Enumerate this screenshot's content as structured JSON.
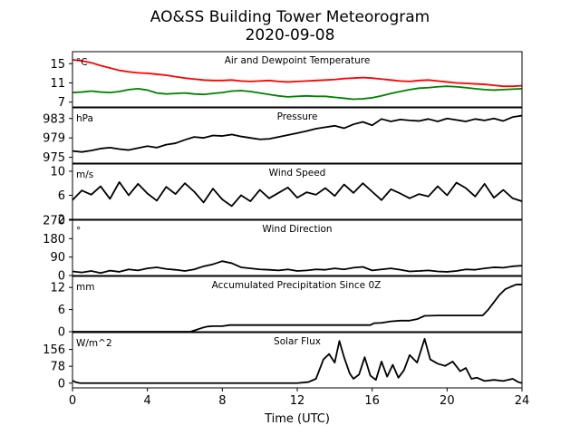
{
  "figure": {
    "title_line1": "AO&SS Building Tower Meteorogram",
    "title_line2": "2020-09-08",
    "xlabel": "Time (UTC)",
    "xlim": [
      0,
      24
    ],
    "xticks": [
      0,
      4,
      8,
      12,
      16,
      20,
      24
    ]
  },
  "chart_data": [
    {
      "type": "line",
      "title": "Air and Dewpoint Temperature",
      "unit": "°C",
      "ylim": [
        6,
        17.5
      ],
      "yticks": [
        7,
        11,
        15
      ],
      "series": [
        {
          "color": "#ff0000",
          "x": [
            0,
            0.5,
            1,
            1.5,
            2,
            2.5,
            3,
            3.5,
            4,
            4.5,
            5,
            5.5,
            6,
            6.5,
            7,
            7.5,
            8,
            8.5,
            9,
            9.5,
            10,
            10.5,
            11,
            11.5,
            12,
            12.5,
            13,
            13.5,
            14,
            14.5,
            15,
            15.5,
            16,
            16.5,
            17,
            17.5,
            18,
            18.5,
            19,
            19.5,
            20,
            20.5,
            21,
            21.5,
            22,
            22.5,
            23,
            23.5,
            24
          ],
          "y": [
            15.8,
            15.6,
            15.2,
            14.6,
            14.1,
            13.6,
            13.3,
            13.1,
            13.0,
            12.8,
            12.6,
            12.3,
            12.0,
            11.8,
            11.6,
            11.5,
            11.5,
            11.6,
            11.4,
            11.3,
            11.4,
            11.5,
            11.3,
            11.2,
            11.3,
            11.4,
            11.5,
            11.6,
            11.7,
            11.9,
            12.0,
            12.1,
            12.0,
            11.8,
            11.6,
            11.4,
            11.3,
            11.5,
            11.6,
            11.4,
            11.2,
            11.0,
            10.9,
            10.8,
            10.7,
            10.5,
            10.3,
            10.3,
            10.4
          ]
        },
        {
          "color": "#008000",
          "x": [
            0,
            0.5,
            1,
            1.5,
            2,
            2.5,
            3,
            3.5,
            4,
            4.5,
            5,
            5.5,
            6,
            6.5,
            7,
            7.5,
            8,
            8.5,
            9,
            9.5,
            10,
            10.5,
            11,
            11.5,
            12,
            12.5,
            13,
            13.5,
            14,
            14.5,
            15,
            15.5,
            16,
            16.5,
            17,
            17.5,
            18,
            18.5,
            19,
            19.5,
            20,
            20.5,
            21,
            21.5,
            22,
            22.5,
            23,
            23.5,
            24
          ],
          "y": [
            9.0,
            9.1,
            9.3,
            9.1,
            9.0,
            9.2,
            9.6,
            9.8,
            9.5,
            8.9,
            8.7,
            8.8,
            8.9,
            8.7,
            8.6,
            8.8,
            9.0,
            9.3,
            9.4,
            9.2,
            8.9,
            8.6,
            8.3,
            8.1,
            8.2,
            8.3,
            8.2,
            8.2,
            8.0,
            7.8,
            7.6,
            7.7,
            7.9,
            8.3,
            8.8,
            9.2,
            9.6,
            9.9,
            10.0,
            10.2,
            10.3,
            10.2,
            10.0,
            9.8,
            9.6,
            9.5,
            9.6,
            9.7,
            9.8
          ]
        }
      ]
    },
    {
      "type": "line",
      "title": "Pressure",
      "unit": "hPa",
      "ylim": [
        973.8,
        985.2
      ],
      "yticks": [
        975,
        979,
        983
      ],
      "series": [
        {
          "color": "#000000",
          "x": [
            0,
            0.5,
            1,
            1.5,
            2,
            2.5,
            3,
            3.5,
            4,
            4.5,
            5,
            5.5,
            6,
            6.5,
            7,
            7.5,
            8,
            8.5,
            9,
            9.5,
            10,
            10.5,
            11,
            11.5,
            12,
            12.5,
            13,
            13.5,
            14,
            14.5,
            15,
            15.5,
            16,
            16.5,
            17,
            17.5,
            18,
            18.5,
            19,
            19.5,
            20,
            20.5,
            21,
            21.5,
            22,
            22.5,
            23,
            23.5,
            24
          ],
          "y": [
            976.3,
            976.1,
            976.4,
            976.8,
            977.0,
            976.7,
            976.5,
            976.9,
            977.3,
            977.0,
            977.6,
            977.9,
            978.6,
            979.2,
            979.0,
            979.5,
            979.4,
            979.7,
            979.3,
            979.0,
            978.7,
            978.8,
            979.2,
            979.6,
            980.0,
            980.4,
            980.9,
            981.2,
            981.5,
            981.0,
            981.8,
            982.3,
            981.6,
            982.9,
            982.4,
            982.8,
            982.6,
            982.5,
            982.9,
            982.4,
            983.0,
            982.7,
            982.4,
            982.9,
            982.6,
            983.0,
            982.5,
            983.3,
            983.6
          ]
        }
      ]
    },
    {
      "type": "line",
      "title": "Wind Speed",
      "unit": "m/s",
      "ylim": [
        2,
        11.2
      ],
      "yticks": [
        2,
        6,
        10
      ],
      "series": [
        {
          "color": "#000000",
          "x": [
            0,
            0.5,
            1,
            1.5,
            2,
            2.5,
            3,
            3.5,
            4,
            4.5,
            5,
            5.5,
            6,
            6.5,
            7,
            7.5,
            8,
            8.5,
            9,
            9.5,
            10,
            10.5,
            11,
            11.5,
            12,
            12.5,
            13,
            13.5,
            14,
            14.5,
            15,
            15.5,
            16,
            16.5,
            17,
            17.5,
            18,
            18.5,
            19,
            19.5,
            20,
            20.5,
            21,
            21.5,
            22,
            22.5,
            23,
            23.5,
            24
          ],
          "y": [
            5.2,
            6.8,
            6.1,
            7.5,
            5.4,
            8.2,
            6.0,
            7.9,
            6.3,
            5.1,
            7.4,
            6.2,
            8.0,
            6.6,
            4.8,
            7.1,
            5.3,
            4.2,
            6.0,
            5.0,
            6.9,
            5.5,
            6.4,
            7.3,
            5.6,
            6.5,
            6.1,
            7.2,
            5.9,
            7.8,
            6.4,
            8.0,
            6.6,
            5.2,
            7.0,
            6.3,
            5.5,
            6.2,
            5.8,
            7.5,
            6.0,
            8.1,
            7.2,
            5.8,
            7.9,
            5.6,
            6.9,
            5.5,
            5.0
          ]
        }
      ]
    },
    {
      "type": "line",
      "title": "Wind Direction",
      "unit": "°",
      "ylim": [
        0,
        270
      ],
      "yticks": [
        0,
        90,
        180,
        270
      ],
      "series": [
        {
          "color": "#000000",
          "x": [
            0,
            0.5,
            1,
            1.5,
            2,
            2.5,
            3,
            3.5,
            4,
            4.5,
            5,
            5.5,
            6,
            6.5,
            7,
            7.5,
            8,
            8.5,
            9,
            9.5,
            10,
            10.5,
            11,
            11.5,
            12,
            12.5,
            13,
            13.5,
            14,
            14.5,
            15,
            15.5,
            16,
            16.5,
            17,
            17.5,
            18,
            18.5,
            19,
            19.5,
            20,
            20.5,
            21,
            21.5,
            22,
            22.5,
            23,
            23.5,
            24
          ],
          "y": [
            20,
            15,
            22,
            12,
            24,
            18,
            30,
            25,
            35,
            40,
            32,
            28,
            22,
            30,
            45,
            55,
            70,
            60,
            40,
            35,
            30,
            28,
            25,
            30,
            22,
            25,
            30,
            28,
            35,
            30,
            38,
            42,
            25,
            30,
            35,
            28,
            20,
            22,
            25,
            20,
            18,
            22,
            30,
            28,
            35,
            40,
            38,
            45,
            48
          ]
        }
      ]
    },
    {
      "type": "line",
      "title": "Accumulated Precipitation Since 0Z",
      "unit": "mm",
      "ylim": [
        0,
        15
      ],
      "yticks": [
        0,
        6,
        12
      ],
      "series": [
        {
          "color": "#000000",
          "x": [
            0,
            6.3,
            6.6,
            6.9,
            7.2,
            7.5,
            8.0,
            8.4,
            9,
            10,
            11,
            12,
            13,
            14,
            15,
            15.9,
            16.1,
            16.5,
            17.0,
            17.5,
            18.0,
            18.4,
            18.8,
            19.5,
            20,
            21.0,
            21.9,
            22.2,
            22.5,
            22.8,
            23.1,
            23.4,
            23.7,
            24
          ],
          "y": [
            0,
            0,
            0.5,
            1.0,
            1.4,
            1.5,
            1.5,
            1.8,
            1.8,
            1.8,
            1.8,
            1.8,
            1.8,
            1.8,
            1.8,
            1.8,
            2.3,
            2.4,
            2.8,
            3.0,
            3.0,
            3.4,
            4.3,
            4.4,
            4.4,
            4.4,
            4.4,
            6.0,
            8.0,
            10.0,
            11.5,
            12.2,
            12.8,
            12.8
          ]
        }
      ]
    },
    {
      "type": "line",
      "title": "Solar Flux",
      "unit": "W/m^2",
      "ylim": [
        -22,
        234
      ],
      "yticks": [
        0,
        78,
        156
      ],
      "series": [
        {
          "color": "#000000",
          "x": [
            0,
            0.15,
            0.4,
            1,
            2,
            3,
            4,
            5,
            6,
            7,
            8,
            9,
            10,
            11,
            12,
            12.6,
            13.0,
            13.4,
            13.7,
            14.0,
            14.25,
            14.5,
            14.8,
            15.0,
            15.3,
            15.6,
            15.9,
            16.2,
            16.5,
            16.8,
            17.1,
            17.4,
            17.7,
            18.0,
            18.4,
            18.8,
            19.1,
            19.5,
            19.9,
            20.3,
            20.7,
            21.0,
            21.3,
            21.6,
            22.0,
            22.5,
            23.0,
            23.5,
            23.8,
            24
          ],
          "y": [
            12,
            5,
            0,
            0,
            0,
            0,
            0,
            0,
            0,
            0,
            0,
            0,
            0,
            0,
            0,
            5,
            20,
            110,
            135,
            95,
            195,
            120,
            45,
            20,
            40,
            120,
            35,
            15,
            100,
            30,
            85,
            25,
            60,
            130,
            95,
            205,
            110,
            90,
            80,
            100,
            55,
            70,
            20,
            25,
            10,
            15,
            10,
            20,
            5,
            0
          ]
        }
      ]
    }
  ]
}
